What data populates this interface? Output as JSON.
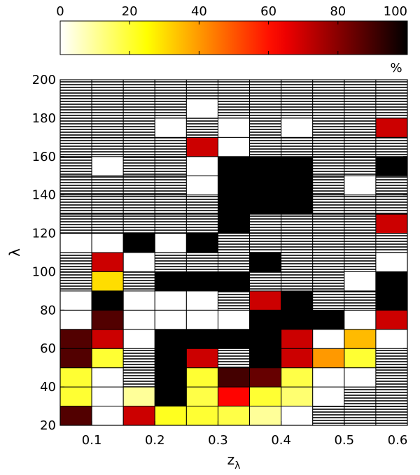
{
  "chart_data": {
    "type": "heatmap",
    "title": "",
    "xlabel": "z",
    "xlabel_subscript": "λ",
    "ylabel": "λ",
    "x_ticks": [
      "0.1",
      "0.2",
      "0.3",
      "0.4",
      "0.5",
      "0.6"
    ],
    "y_ticks": [
      "20",
      "40",
      "60",
      "80",
      "100",
      "120",
      "140",
      "160",
      "180",
      "200"
    ],
    "x_range": [
      0.05,
      0.6
    ],
    "y_range": [
      20,
      200
    ],
    "x_bin_edges": [
      0.05,
      0.1,
      0.15,
      0.2,
      0.25,
      0.3,
      0.35,
      0.4,
      0.45,
      0.5,
      0.55,
      0.6
    ],
    "y_bin_edges": [
      20,
      30,
      40,
      50,
      60,
      70,
      80,
      90,
      100,
      110,
      120,
      130,
      140,
      150,
      160,
      170,
      180,
      190,
      200
    ],
    "colorbar": {
      "ticks": [
        "0",
        "20",
        "40",
        "60",
        "80",
        "100"
      ],
      "range": [
        0,
        100
      ],
      "unit": "%",
      "colormap": "hot (reversed)",
      "position": "top"
    },
    "hatch_meaning_note": "",
    "grid": [
      [
        88,
        0,
        70,
        22,
        20,
        18,
        10,
        0,
        "h",
        "h",
        "h"
      ],
      [
        20,
        0,
        10,
        100,
        18,
        62,
        20,
        14,
        0,
        "h",
        "h"
      ],
      [
        20,
        0,
        "h",
        100,
        20,
        90,
        85,
        18,
        0,
        0,
        "h"
      ],
      [
        88,
        20,
        "h",
        100,
        70,
        "h",
        100,
        70,
        40,
        20,
        "h"
      ],
      [
        88,
        70,
        0,
        100,
        100,
        100,
        100,
        70,
        0,
        35,
        0
      ],
      [
        0,
        88,
        0,
        0,
        0,
        0,
        100,
        100,
        100,
        0,
        70
      ],
      [
        0,
        100,
        0,
        0,
        0,
        "h",
        70,
        100,
        "h",
        "h",
        100
      ],
      [
        "h",
        30,
        "h",
        100,
        100,
        100,
        "h",
        "h",
        "h",
        0,
        100
      ],
      [
        "h",
        70,
        0,
        "h",
        "h",
        "h",
        100,
        "h",
        "h",
        "h",
        0
      ],
      [
        0,
        0,
        100,
        0,
        100,
        "h",
        "h",
        "h",
        "h",
        "h",
        "h"
      ],
      [
        "h",
        "h",
        "h",
        "h",
        "h",
        100,
        "h",
        "h",
        "h",
        "h",
        70
      ],
      [
        "h",
        "h",
        "h",
        "h",
        "h",
        100,
        100,
        100,
        "h",
        "h",
        "h"
      ],
      [
        "h",
        "h",
        "h",
        "h",
        0,
        100,
        100,
        100,
        "h",
        0,
        "h"
      ],
      [
        "h",
        0,
        "h",
        "h",
        0,
        100,
        100,
        100,
        "h",
        "h",
        100
      ],
      [
        "h",
        "h",
        "h",
        "h",
        70,
        0,
        "h",
        "h",
        "h",
        "h",
        "h"
      ],
      [
        "h",
        "h",
        "h",
        0,
        "h",
        0,
        "h",
        0,
        "h",
        "h",
        70
      ],
      [
        "h",
        "h",
        "h",
        "h",
        0,
        "h",
        "h",
        "h",
        "h",
        "h",
        "h"
      ],
      [
        "h",
        "h",
        "h",
        "h",
        "h",
        "h",
        "h",
        "h",
        "h",
        "h",
        "h"
      ]
    ]
  }
}
